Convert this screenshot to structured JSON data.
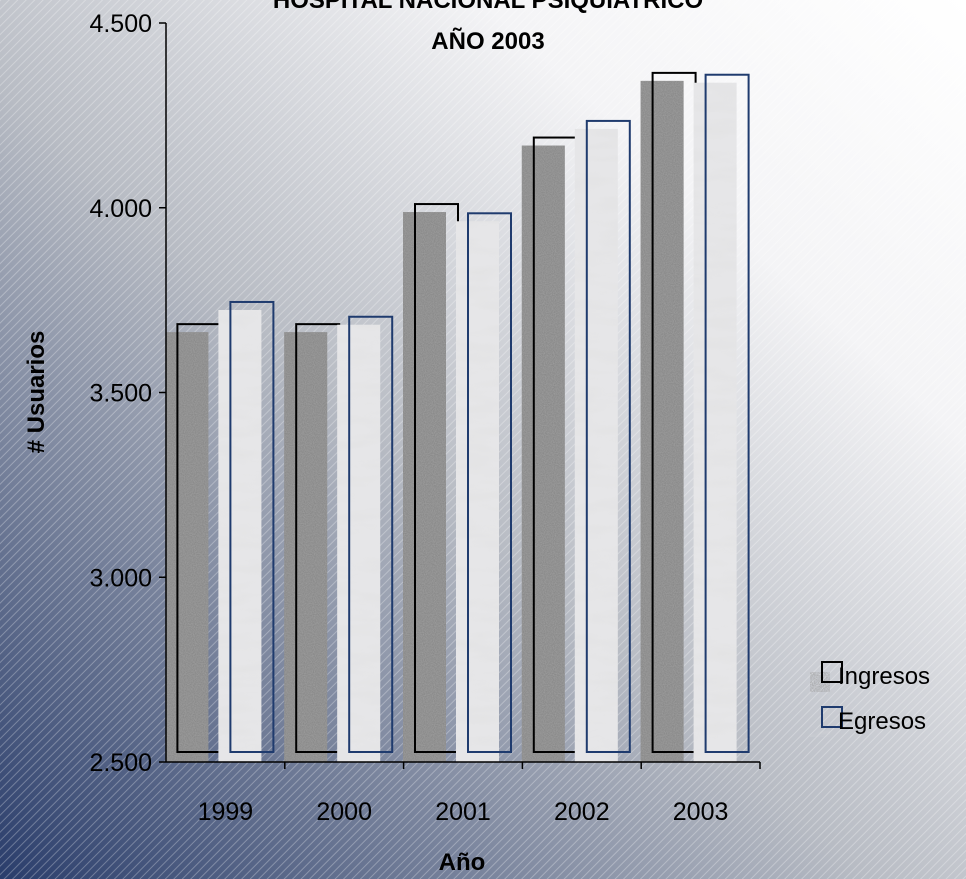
{
  "chart_data": {
    "type": "bar",
    "title_line1": "HOSPITAL NACIONAL PSIQUIATRICO",
    "title_line2": "AÑO 2003",
    "xlabel": "Año",
    "ylabel": "# Usuarios",
    "categories": [
      "1999",
      "2000",
      "2001",
      "2002",
      "2003"
    ],
    "series": [
      {
        "name": "Ingresos",
        "values": [
          3685,
          3685,
          4010,
          4190,
          4365
        ],
        "color": "#000000"
      },
      {
        "name": "Egresos",
        "values": [
          3745,
          3705,
          3985,
          4235,
          4360
        ],
        "color": "#1f3b6e"
      }
    ],
    "ylim": [
      2500,
      4500
    ],
    "yticks": [
      2500,
      3000,
      3500,
      4000,
      4500
    ],
    "ytick_labels": [
      "2.500",
      "3.000",
      "3.500",
      "4.000",
      "4.500"
    ],
    "grid": false,
    "legend_position": "right",
    "background_colors": [
      "#2a3d6b",
      "#b8bcc4",
      "#ffffff"
    ]
  }
}
